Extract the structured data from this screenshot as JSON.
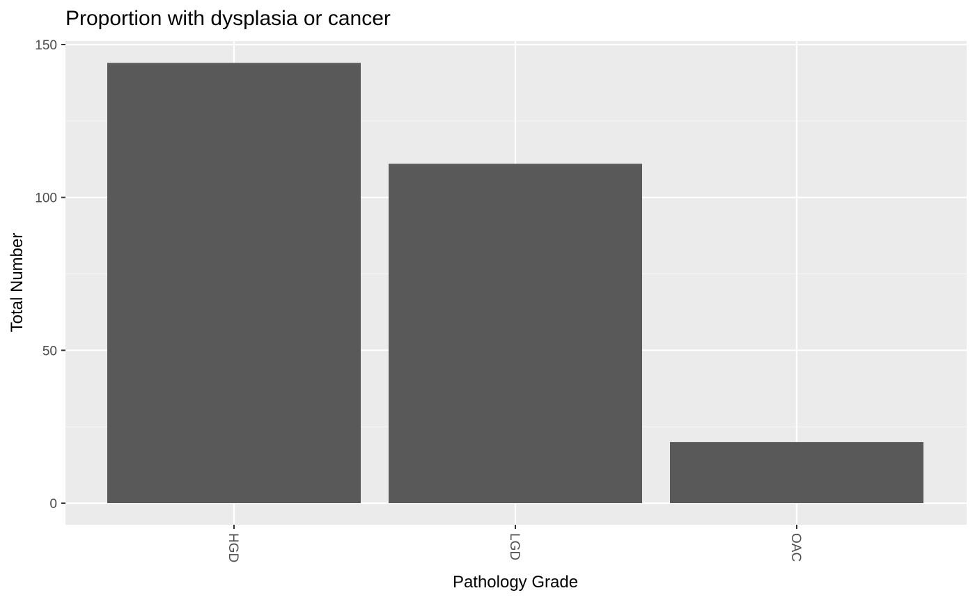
{
  "chart_data": {
    "type": "bar",
    "title": "Proportion with dysplasia or cancer",
    "xlabel": "Pathology Grade",
    "ylabel": "Total Number",
    "categories": [
      "HGD",
      "LGD",
      "OAC"
    ],
    "values": [
      144,
      111,
      20
    ],
    "ylim": [
      0,
      150
    ],
    "y_ticks": [
      0,
      50,
      100,
      150
    ],
    "y_tick_labels": [
      "0",
      "50",
      "100",
      "150"
    ],
    "x_tick_rotation": "vertical",
    "grid": true,
    "legend": "none",
    "colors": {
      "bar": "#595959",
      "panel_background": "#ebebeb",
      "grid_major": "#ffffff",
      "grid_minor": "#f5f5f5",
      "tick_text": "#4d4d4d",
      "tick_mark": "#333333"
    }
  }
}
